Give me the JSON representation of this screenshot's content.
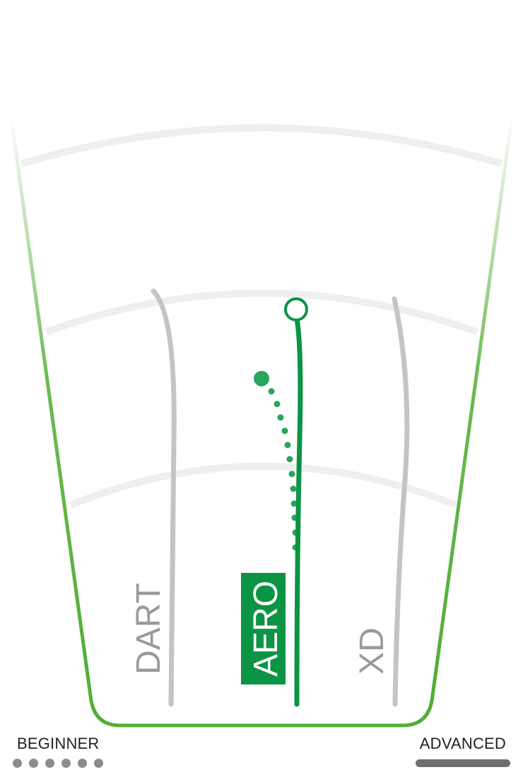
{
  "discs": [
    {
      "name": "DART",
      "selected": false
    },
    {
      "name": "AERO",
      "selected": true
    },
    {
      "name": "XD",
      "selected": false
    }
  ],
  "scale": {
    "beginner_label": "BEGINNER",
    "advanced_label": "ADVANCED",
    "beginner_dots": 6
  },
  "colors": {
    "field_outline": "#52ad35",
    "selected": "#0b9444",
    "unselected": "#c4c4c4",
    "grid_arc": "#efefef",
    "label_unselected": "#9a9a9a"
  }
}
